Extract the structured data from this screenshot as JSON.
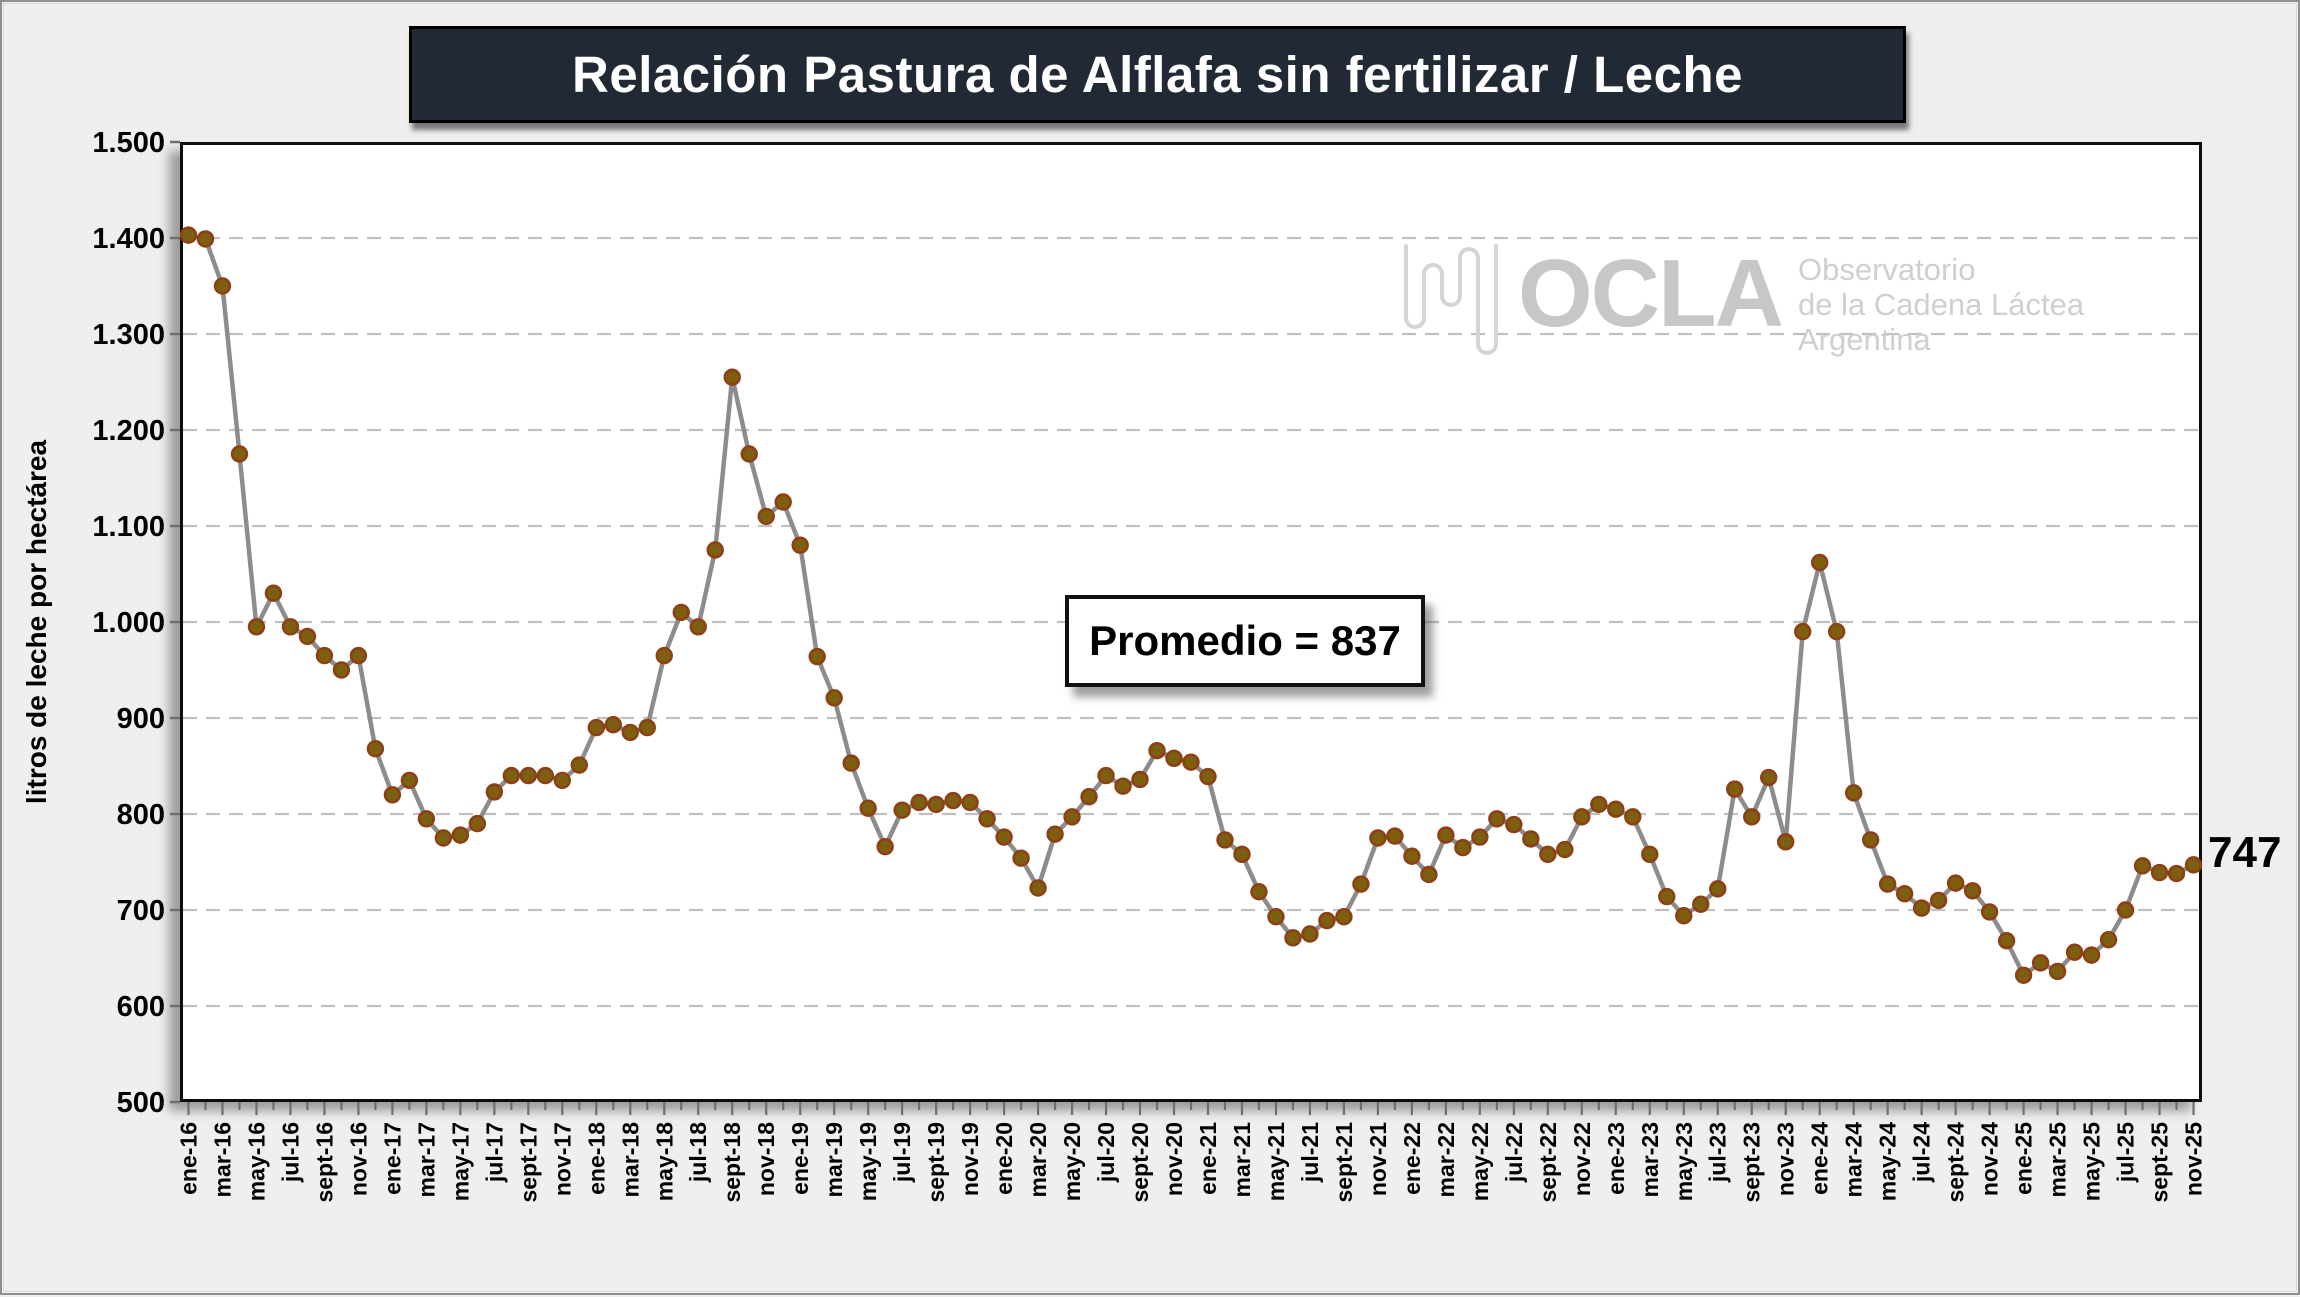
{
  "title": "Relación Pastura de Alflafa sin fertilizar / Leche",
  "annotation": {
    "text": "Promedio = 837"
  },
  "last_value_label": "747",
  "y_axis": {
    "label": "litros de leche por hectárea",
    "ticks": [
      "1.500",
      "1.400",
      "1.300",
      "1.200",
      "1.100",
      "1.000",
      "900",
      "800",
      "700",
      "600",
      "500"
    ]
  },
  "logo": {
    "wordmark": "OCLA",
    "line1": "Observatorio",
    "line2": "de la Cadena Láctea",
    "line3": "Argentina"
  },
  "colors": {
    "background": "#f0efed",
    "plot_background": "#ffffff",
    "grid": "#bfbfbf",
    "axis": "#1a1a1a",
    "tick": "#6e6e6e",
    "line": "#8c8c8c",
    "marker_fill": "#7d5f10",
    "marker_stroke": "#8d4016",
    "title_bg": "#212934",
    "title_text": "#ffffff",
    "logo_gray": "#c7c7c7"
  },
  "chart_data": {
    "type": "line",
    "title": "Relación Pastura de Alflafa sin fertilizar / Leche",
    "xlabel": "",
    "ylabel": "litros de leche por hectárea",
    "ylim": [
      500,
      1500
    ],
    "grid": true,
    "legend_position": "none",
    "label_every": 2,
    "x": [
      "ene-16",
      "feb-16",
      "mar-16",
      "abr-16",
      "may-16",
      "jun-16",
      "jul-16",
      "ago-16",
      "sept-16",
      "oct-16",
      "nov-16",
      "dic-16",
      "ene-17",
      "feb-17",
      "mar-17",
      "abr-17",
      "may-17",
      "jun-17",
      "jul-17",
      "ago-17",
      "sept-17",
      "oct-17",
      "nov-17",
      "dic-17",
      "ene-18",
      "feb-18",
      "mar-18",
      "abr-18",
      "may-18",
      "jun-18",
      "jul-18",
      "ago-18",
      "sept-18",
      "oct-18",
      "nov-18",
      "dic-18",
      "ene-19",
      "feb-19",
      "mar-19",
      "abr-19",
      "may-19",
      "jun-19",
      "jul-19",
      "ago-19",
      "sept-19",
      "oct-19",
      "nov-19",
      "dic-19",
      "ene-20",
      "feb-20",
      "mar-20",
      "abr-20",
      "may-20",
      "jun-20",
      "jul-20",
      "ago-20",
      "sept-20",
      "oct-20",
      "nov-20",
      "dic-20",
      "ene-21",
      "feb-21",
      "mar-21",
      "abr-21",
      "may-21",
      "jun-21",
      "jul-21",
      "ago-21",
      "sept-21",
      "oct-21",
      "nov-21",
      "dic-21",
      "ene-22",
      "feb-22",
      "mar-22",
      "abr-22",
      "may-22",
      "jun-22",
      "jul-22",
      "ago-22",
      "sept-22",
      "oct-22",
      "nov-22",
      "dic-22",
      "ene-23",
      "feb-23",
      "mar-23",
      "abr-23",
      "may-23",
      "jun-23",
      "jul-23",
      "ago-23",
      "sept-23",
      "oct-23",
      "nov-23",
      "dic-23",
      "ene-24",
      "feb-24",
      "mar-24",
      "abr-24",
      "may-24",
      "jun-24",
      "jul-24",
      "ago-24",
      "sept-24",
      "oct-24",
      "nov-24",
      "dic-24",
      "ene-25",
      "feb-25",
      "mar-25",
      "abr-25",
      "may-25",
      "jun-25",
      "jul-25",
      "ago-25",
      "sept-25",
      "oct-25",
      "nov-25"
    ],
    "series": [
      {
        "name": "Relación Pastura de Alfalfa sin fertilizar / Leche",
        "values": [
          1403,
          1399,
          1350,
          1175,
          995,
          1030,
          995,
          985,
          965,
          950,
          965,
          868,
          820,
          835,
          795,
          775,
          778,
          790,
          823,
          840,
          840,
          840,
          835,
          851,
          890,
          893,
          885,
          890,
          965,
          1010,
          995,
          1075,
          1255,
          1175,
          1110,
          1125,
          1080,
          964,
          921,
          853,
          806,
          766,
          804,
          812,
          810,
          814,
          812,
          795,
          776,
          754,
          723,
          779,
          797,
          818,
          840,
          829,
          836,
          866,
          858,
          854,
          839,
          773,
          758,
          719,
          693,
          671,
          675,
          689,
          693,
          727,
          775,
          777,
          756,
          737,
          778,
          765,
          776,
          795,
          789,
          774,
          758,
          763,
          797,
          810,
          805,
          797,
          758,
          714,
          694,
          706,
          722,
          826,
          797,
          838,
          771,
          990,
          1062,
          990,
          822,
          773,
          727,
          717,
          702,
          710,
          728,
          720,
          698,
          668,
          632,
          645,
          636,
          656,
          653,
          669,
          700,
          746,
          739,
          738,
          747
        ]
      }
    ],
    "average": 837
  }
}
